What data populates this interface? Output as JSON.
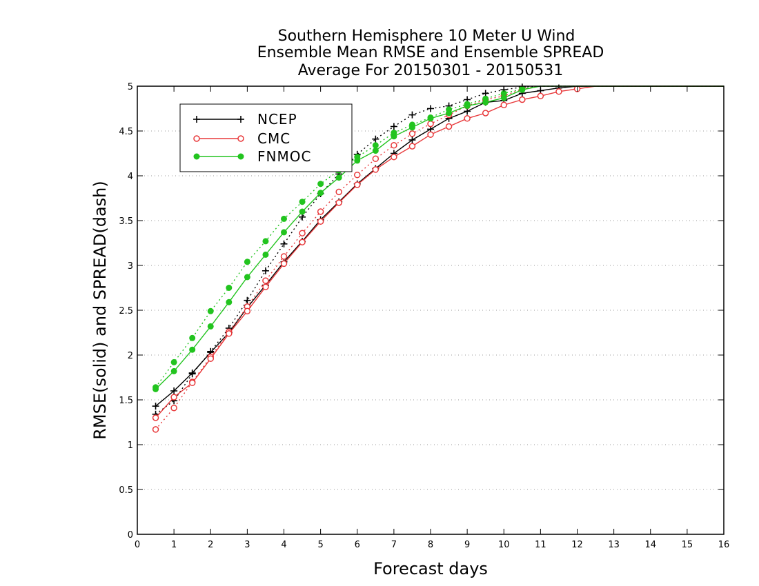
{
  "chart_data": {
    "type": "line",
    "title_lines": [
      "Southern Hemisphere 10 Meter U Wind",
      "Ensemble Mean RMSE and Ensemble SPREAD",
      "Average For 20150301 - 20150531"
    ],
    "xlabel": "Forecast days",
    "ylabel": "RMSE(solid) and SPREAD(dash)",
    "xlim": [
      0,
      16
    ],
    "ylim": [
      0,
      5
    ],
    "x_ticks": [
      "0",
      "1",
      "2",
      "3",
      "4",
      "5",
      "6",
      "7",
      "8",
      "9",
      "10",
      "11",
      "12",
      "13",
      "14",
      "15",
      "16"
    ],
    "y_ticks": [
      "0",
      "0.5",
      "1",
      "1.5",
      "2",
      "2.5",
      "3",
      "3.5",
      "4",
      "4.5",
      "5"
    ],
    "grid": "horizontal dotted",
    "legend_position": "top-left",
    "x": [
      0.5,
      1,
      1.5,
      2,
      2.5,
      3,
      3.5,
      4,
      4.5,
      5,
      5.5,
      6,
      6.5,
      7,
      7.5,
      8,
      8.5,
      9,
      9.5,
      10,
      10.5,
      11,
      11.5,
      12,
      12.5,
      13,
      13.5,
      14,
      14.5,
      15,
      15.5,
      16
    ],
    "series": [
      {
        "name": "NCEP",
        "color": "#000000",
        "marker": "plus",
        "rmse": [
          1.43,
          1.6,
          1.8,
          2.03,
          2.25,
          2.53,
          2.78,
          3.04,
          3.27,
          3.51,
          3.71,
          3.91,
          4.08,
          4.25,
          4.4,
          4.52,
          4.64,
          4.72,
          4.82,
          4.84,
          4.92,
          4.95,
          4.98,
          5.0,
          5.0,
          5.0,
          5.0,
          5.0,
          5.0,
          5.0,
          5.0,
          5.0
        ],
        "spread": [
          1.34,
          1.49,
          1.79,
          2.04,
          2.3,
          2.61,
          2.94,
          3.24,
          3.54,
          3.8,
          4.02,
          4.24,
          4.41,
          4.55,
          4.68,
          4.75,
          4.78,
          4.85,
          4.92,
          4.96,
          4.99,
          5.0,
          5.0,
          5.0,
          5.0,
          5.0,
          5.0,
          5.0,
          5.0,
          5.0,
          5.0,
          5.0
        ]
      },
      {
        "name": "CMC",
        "color": "#e8383a",
        "marker": "open-circle",
        "rmse": [
          1.3,
          1.53,
          1.69,
          1.96,
          2.24,
          2.49,
          2.76,
          3.02,
          3.26,
          3.49,
          3.7,
          3.9,
          4.07,
          4.21,
          4.33,
          4.46,
          4.55,
          4.64,
          4.7,
          4.79,
          4.85,
          4.89,
          4.94,
          4.97,
          5.0,
          5.0,
          5.0,
          5.0,
          5.0,
          5.0,
          5.0,
          5.0
        ],
        "spread": [
          1.17,
          1.41,
          1.7,
          1.98,
          2.26,
          2.54,
          2.83,
          3.1,
          3.36,
          3.6,
          3.82,
          4.01,
          4.19,
          4.34,
          4.47,
          4.58,
          4.68,
          4.78,
          4.85,
          4.89,
          4.97,
          5.0,
          5.0,
          5.0,
          5.0,
          5.0,
          5.0,
          5.0,
          5.0,
          5.0,
          5.0,
          5.0
        ]
      },
      {
        "name": "FNMOC",
        "color": "#22c41f",
        "marker": "filled-circle",
        "rmse": [
          1.62,
          1.82,
          2.06,
          2.32,
          2.59,
          2.87,
          3.12,
          3.37,
          3.6,
          3.81,
          3.98,
          4.17,
          4.28,
          4.44,
          4.54,
          4.64,
          4.7,
          4.78,
          4.82,
          4.87,
          4.96,
          5.0,
          5.0,
          5.0,
          5.0,
          5.0,
          5.0,
          5.0,
          5.0,
          5.0,
          5.0,
          5.0
        ],
        "spread": [
          1.64,
          1.92,
          2.19,
          2.49,
          2.75,
          3.04,
          3.27,
          3.52,
          3.71,
          3.91,
          4.06,
          4.21,
          4.34,
          4.48,
          4.57,
          4.65,
          4.74,
          4.8,
          4.86,
          4.92,
          4.97,
          5.0,
          5.0,
          5.0,
          5.0,
          5.0,
          5.0,
          5.0,
          5.0,
          5.0,
          5.0,
          5.0
        ]
      }
    ]
  }
}
